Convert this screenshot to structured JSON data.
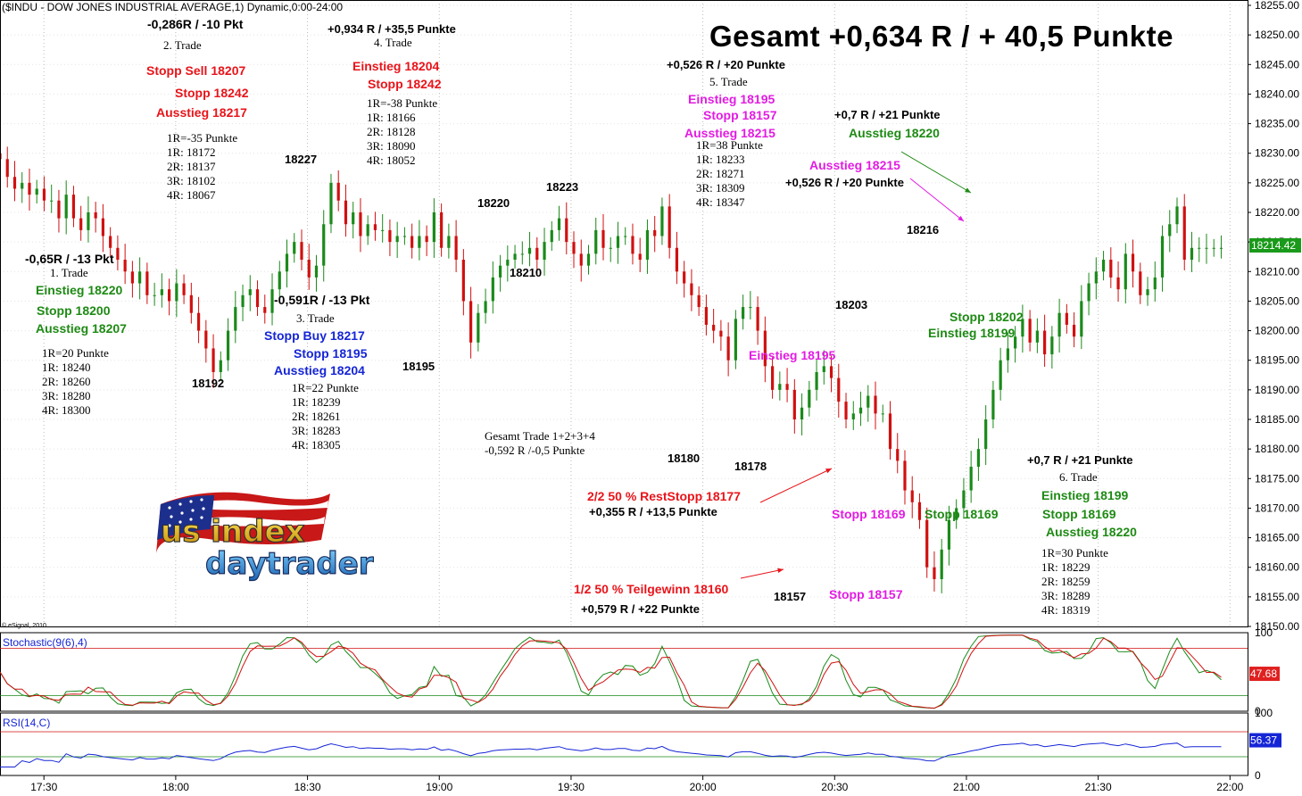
{
  "header": {
    "symbol_line": "($INDU - DOW JONES INDUSTRIAL AVERAGE,1) Dynamic,0:00-24:00",
    "title": "Gesamt +0,634 R / + 40,5 Punkte",
    "copyright": "© eSignal, 2010"
  },
  "colors": {
    "up": "#1a8a1a",
    "down": "#d01010",
    "stoch_k": "#1a8a1a",
    "stoch_d": "#d01010",
    "rsi": "#1525d6",
    "price_badge": "#1a9a1a",
    "stoch_badge": "#e02020",
    "rsi_badge": "#1525d6"
  },
  "chart_data": [
    {
      "type": "candlestick",
      "name": "$INDU 1-minute",
      "x_labels": [
        "17:30",
        "18:00",
        "18:30",
        "19:00",
        "19:30",
        "20:00",
        "20:30",
        "21:00",
        "21:30",
        "22:00"
      ],
      "x_range": [
        "17:20",
        "22:04"
      ],
      "ylim": [
        18150,
        18255
      ],
      "y_ticks": [
        18150,
        18155,
        18160,
        18165,
        18170,
        18175,
        18180,
        18185,
        18190,
        18195,
        18200,
        18205,
        18210,
        18215,
        18220,
        18225,
        18230,
        18235,
        18240,
        18245,
        18250,
        18255
      ],
      "last_price": "18214.42",
      "swing_points": [
        {
          "time": "18:15",
          "value": 18192
        },
        {
          "time": "18:43",
          "value": 18227
        },
        {
          "time": "19:16",
          "value": 18195
        },
        {
          "time": "19:36",
          "value": 18220
        },
        {
          "time": "19:45",
          "value": 18210
        },
        {
          "time": "19:56",
          "value": 18223
        },
        {
          "time": "20:33",
          "value": 18180
        },
        {
          "time": "20:48",
          "value": 18178
        },
        {
          "time": "20:59",
          "value": 18157
        },
        {
          "time": "21:16",
          "value": 18203
        },
        {
          "time": "21:37",
          "value": 18216
        }
      ],
      "close": [
        18229,
        18226,
        18224,
        18225,
        18223,
        18224,
        18222,
        18222,
        18219,
        18223,
        18219,
        18217,
        18220,
        18219,
        18216,
        18214,
        18212,
        18210,
        18208,
        18210,
        18206,
        18206,
        18207,
        18205,
        18208,
        18206,
        18203,
        18200,
        18197,
        18193,
        18195,
        18200,
        18204,
        18206,
        18207,
        18204,
        18203,
        18207,
        18210,
        18213,
        18215,
        18212,
        18209,
        18211,
        18218,
        18225,
        18222,
        18218,
        18220,
        18216,
        18218,
        18217,
        18217,
        18215,
        18216,
        18216,
        18214,
        18216,
        18215,
        18220,
        18214,
        18216,
        18212,
        18205,
        18198,
        18203,
        18205,
        18209,
        18211,
        18212,
        18213,
        18213,
        18214,
        18212,
        18215,
        18217,
        18219,
        18215,
        18213,
        18211,
        18213,
        18217,
        18214,
        18214,
        18216,
        18216,
        18213,
        18212,
        18217,
        18216,
        18221,
        18214,
        18210,
        18208,
        18206,
        18204,
        18201,
        18200,
        18199,
        18195,
        18202,
        18204,
        18204,
        18200,
        18194,
        18190,
        18191,
        18190,
        18185,
        18187,
        18190,
        18193,
        18194,
        18192,
        18188,
        18185,
        18186,
        18187,
        18189,
        18186,
        18186,
        18180,
        18178,
        18173,
        18171,
        18168,
        18160,
        18158,
        18163,
        18168,
        18170,
        18173,
        18177,
        18180,
        18185,
        18190,
        18195,
        18197,
        18199,
        18202,
        18198,
        18200,
        18196,
        18199,
        18203,
        18201,
        18199,
        18205,
        18208,
        18210,
        18212,
        18209,
        18207,
        18213,
        18210,
        18206,
        18207,
        18209,
        18216,
        18218,
        18221,
        18212,
        18214,
        18214,
        18214,
        18214,
        18214
      ]
    },
    {
      "type": "line",
      "name": "Stochastic(9(6),4)",
      "ylim": [
        0,
        100
      ],
      "y_ticks": [
        0,
        100
      ],
      "levels": [
        20,
        80
      ],
      "last_value": "47.68",
      "series": [
        {
          "name": "%K"
        },
        {
          "name": "%D"
        }
      ]
    },
    {
      "type": "line",
      "name": "RSI(14,C)",
      "ylim": [
        0,
        100
      ],
      "y_ticks": [
        0,
        100
      ],
      "levels": [
        30,
        70
      ],
      "last_value": "56.37",
      "series": [
        {
          "name": "RSI"
        }
      ]
    }
  ],
  "annotations": [
    {
      "id": "t2-result",
      "text": "-0,286R / -10 Pkt",
      "cls": "blk md"
    },
    {
      "id": "t2-name",
      "text": "2. Trade",
      "cls": "blk serif"
    },
    {
      "id": "t2-stopsell",
      "text": "Stopp Sell 18207",
      "cls": "red md"
    },
    {
      "id": "t2-stopp",
      "text": "Stopp 18242",
      "cls": "red md"
    },
    {
      "id": "t2-exit",
      "text": "Ausstieg 18217",
      "cls": "red md"
    },
    {
      "id": "t2-r0",
      "text": "1R=-35 Punkte",
      "cls": "blk serif"
    },
    {
      "id": "t2-r1",
      "text": "1R: 18172",
      "cls": "blk serif"
    },
    {
      "id": "t2-r2",
      "text": "2R: 18137",
      "cls": "blk serif"
    },
    {
      "id": "t2-r3",
      "text": "3R: 18102",
      "cls": "blk serif"
    },
    {
      "id": "t2-r4",
      "text": "4R: 18067",
      "cls": "blk serif"
    },
    {
      "id": "t4-result",
      "text": "+0,934 R / +35,5 Punkte",
      "cls": "blk sm"
    },
    {
      "id": "t4-name",
      "text": "4. Trade",
      "cls": "blk serif"
    },
    {
      "id": "t4-entry",
      "text": "Einstieg 18204",
      "cls": "red md"
    },
    {
      "id": "t4-stopp",
      "text": "Stopp 18242",
      "cls": "red md"
    },
    {
      "id": "t4-r0",
      "text": "1R=-38 Punkte",
      "cls": "blk serif"
    },
    {
      "id": "t4-r1",
      "text": "1R: 18166",
      "cls": "blk serif"
    },
    {
      "id": "t4-r2",
      "text": "2R: 18128",
      "cls": "blk serif"
    },
    {
      "id": "t4-r3",
      "text": "3R: 18090",
      "cls": "blk serif"
    },
    {
      "id": "t4-r4",
      "text": "4R: 18052",
      "cls": "blk serif"
    },
    {
      "id": "t5-result",
      "text": "+0,526 R / +20 Punkte",
      "cls": "blk sm"
    },
    {
      "id": "t5-name",
      "text": "5. Trade",
      "cls": "blk serif"
    },
    {
      "id": "t5-entry",
      "text": "Einstieg 18195",
      "cls": "mag md"
    },
    {
      "id": "t5-stopp",
      "text": "Stopp 18157",
      "cls": "mag md"
    },
    {
      "id": "t5-exit",
      "text": "Ausstieg 18215",
      "cls": "mag md"
    },
    {
      "id": "t5-r0",
      "text": "1R=38 Punkte",
      "cls": "blk serif"
    },
    {
      "id": "t5-r1",
      "text": "1R: 18233",
      "cls": "blk serif"
    },
    {
      "id": "t5-r2",
      "text": "2R: 18271",
      "cls": "blk serif"
    },
    {
      "id": "t5-r3",
      "text": "3R: 18309",
      "cls": "blk serif"
    },
    {
      "id": "t5-r4",
      "text": "4R: 18347",
      "cls": "blk serif"
    },
    {
      "id": "t6top-result",
      "text": "+0,7 R / +21 Punkte",
      "cls": "blk sm"
    },
    {
      "id": "t6top-exit",
      "text": "Ausstieg 18220",
      "cls": "green md"
    },
    {
      "id": "t5b-exit",
      "text": "Ausstieg 18215",
      "cls": "mag md"
    },
    {
      "id": "t5b-result",
      "text": "+0,526 R / +20 Punkte",
      "cls": "blk sm"
    },
    {
      "id": "lbl-18227",
      "text": "18227",
      "cls": "blk sm"
    },
    {
      "id": "lbl-18220",
      "text": "18220",
      "cls": "blk sm"
    },
    {
      "id": "lbl-18223",
      "text": "18223",
      "cls": "blk sm"
    },
    {
      "id": "lbl-18210",
      "text": "18210",
      "cls": "blk sm"
    },
    {
      "id": "lbl-18216",
      "text": "18216",
      "cls": "blk sm"
    },
    {
      "id": "lbl-18203",
      "text": "18203",
      "cls": "blk sm"
    },
    {
      "id": "lbl-18192",
      "text": "18192",
      "cls": "blk sm"
    },
    {
      "id": "lbl-18195",
      "text": "18195",
      "cls": "blk sm"
    },
    {
      "id": "lbl-18180",
      "text": "18180",
      "cls": "blk sm"
    },
    {
      "id": "lbl-18178",
      "text": "18178",
      "cls": "blk sm"
    },
    {
      "id": "lbl-18157",
      "text": "18157",
      "cls": "blk sm"
    },
    {
      "id": "t1-result",
      "text": "-0,65R / -13 Pkt",
      "cls": "blk md"
    },
    {
      "id": "t1-name",
      "text": "1. Trade",
      "cls": "blk serif"
    },
    {
      "id": "t1-entry",
      "text": "Einstieg 18220",
      "cls": "green md"
    },
    {
      "id": "t1-stopp",
      "text": "Stopp 18200",
      "cls": "green md"
    },
    {
      "id": "t1-exit",
      "text": "Ausstieg 18207",
      "cls": "green md"
    },
    {
      "id": "t1-r0",
      "text": "1R=20 Punkte",
      "cls": "blk serif"
    },
    {
      "id": "t1-r1",
      "text": "1R: 18240",
      "cls": "blk serif"
    },
    {
      "id": "t1-r2",
      "text": "2R: 18260",
      "cls": "blk serif"
    },
    {
      "id": "t1-r3",
      "text": "3R: 18280",
      "cls": "blk serif"
    },
    {
      "id": "t1-r4",
      "text": "4R: 18300",
      "cls": "blk serif"
    },
    {
      "id": "t3-result",
      "text": "-0,591R / -13 Pkt",
      "cls": "blk md"
    },
    {
      "id": "t3-name",
      "text": "3. Trade",
      "cls": "blk serif"
    },
    {
      "id": "t3-stopbuy",
      "text": "Stopp Buy 18217",
      "cls": "blue md"
    },
    {
      "id": "t3-stopp",
      "text": "Stopp 18195",
      "cls": "blue md"
    },
    {
      "id": "t3-exit",
      "text": "Ausstieg 18204",
      "cls": "blue md"
    },
    {
      "id": "t3-r0",
      "text": "1R=22 Punkte",
      "cls": "blk serif"
    },
    {
      "id": "t3-r1",
      "text": "1R: 18239",
      "cls": "blk serif"
    },
    {
      "id": "t3-r2",
      "text": "2R: 18261",
      "cls": "blk serif"
    },
    {
      "id": "t3-r3",
      "text": "3R: 18283",
      "cls": "blk serif"
    },
    {
      "id": "t3-r4",
      "text": "4R: 18305",
      "cls": "blk serif"
    },
    {
      "id": "t6-stopp18202",
      "text": "Stopp 18202",
      "cls": "green md"
    },
    {
      "id": "t6-entry18199",
      "text": "Einstieg 18199",
      "cls": "green md"
    },
    {
      "id": "t5-entry-mid",
      "text": "Einstieg 18195",
      "cls": "mag md"
    },
    {
      "id": "sum-123-a",
      "text": "Gesamt Trade 1+2+3+4",
      "cls": "blk serif"
    },
    {
      "id": "sum-123-b",
      "text": "-0,592 R /-0,5 Punkte",
      "cls": "blk serif"
    },
    {
      "id": "t5-reststop",
      "text": "2/2 50 % RestStopp 18177",
      "cls": "red md"
    },
    {
      "id": "t5-rest-result",
      "text": "+0,355 R / +13,5 Punkte",
      "cls": "blk sm"
    },
    {
      "id": "t5-stopp18169",
      "text": "Stopp 18169",
      "cls": "mag md"
    },
    {
      "id": "t6-stopp18169",
      "text": "Stopp 18169",
      "cls": "green md"
    },
    {
      "id": "t5-partial",
      "text": "1/2 50 % Teilgewinn 18160",
      "cls": "red md"
    },
    {
      "id": "t5-partial-result",
      "text": "+0,579 R / +22 Punkte",
      "cls": "blk sm"
    },
    {
      "id": "t5-stopp18157",
      "text": "Stopp 18157",
      "cls": "mag md"
    },
    {
      "id": "t6-result",
      "text": "+0,7 R / +21 Punkte",
      "cls": "blk sm"
    },
    {
      "id": "t6-name",
      "text": "6. Trade",
      "cls": "blk serif"
    },
    {
      "id": "t6-entry",
      "text": "Einstieg 18199",
      "cls": "green md"
    },
    {
      "id": "t6-stopp",
      "text": "Stopp 18169",
      "cls": "green md"
    },
    {
      "id": "t6-exit",
      "text": "Ausstieg 18220",
      "cls": "green md"
    },
    {
      "id": "t6-r0",
      "text": "1R=30 Punkte",
      "cls": "blk serif"
    },
    {
      "id": "t6-r1",
      "text": "1R: 18229",
      "cls": "blk serif"
    },
    {
      "id": "t6-r2",
      "text": "2R: 18259",
      "cls": "blk serif"
    },
    {
      "id": "t6-r3",
      "text": "3R: 18289",
      "cls": "blk serif"
    },
    {
      "id": "t6-r4",
      "text": "4R: 18319",
      "cls": "blk serif"
    }
  ],
  "logo": {
    "line1": "us index",
    "line2": "daytrader"
  }
}
